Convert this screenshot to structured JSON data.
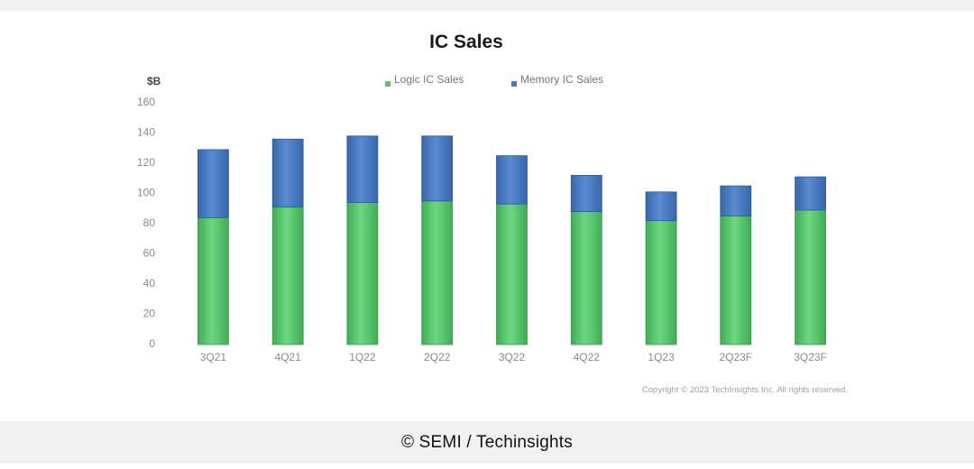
{
  "caption": "© SEMI / Techinsights",
  "chart_data": {
    "type": "bar",
    "stacked": true,
    "title": "IC Sales",
    "ylabel": "$B",
    "xlabel": "",
    "ylim": [
      0,
      160
    ],
    "yticks": [
      0,
      20,
      40,
      60,
      80,
      100,
      120,
      140,
      160
    ],
    "categories": [
      "3Q21",
      "4Q21",
      "1Q22",
      "2Q22",
      "3Q22",
      "4Q22",
      "1Q23",
      "2Q23F",
      "3Q23F"
    ],
    "series": [
      {
        "name": "Logic IC Sales",
        "color": "#5cc56f",
        "values": [
          84,
          91,
          94,
          95,
          93,
          88,
          82,
          85,
          89
        ]
      },
      {
        "name": "Memory IC Sales",
        "color": "#4a78bf",
        "values": [
          45,
          45,
          44,
          43,
          32,
          24,
          19,
          20,
          22
        ]
      }
    ],
    "legend_position": "top",
    "grid": false,
    "copyright": "Copyright © 2023 TechInsights Inc. All rights reserved."
  }
}
